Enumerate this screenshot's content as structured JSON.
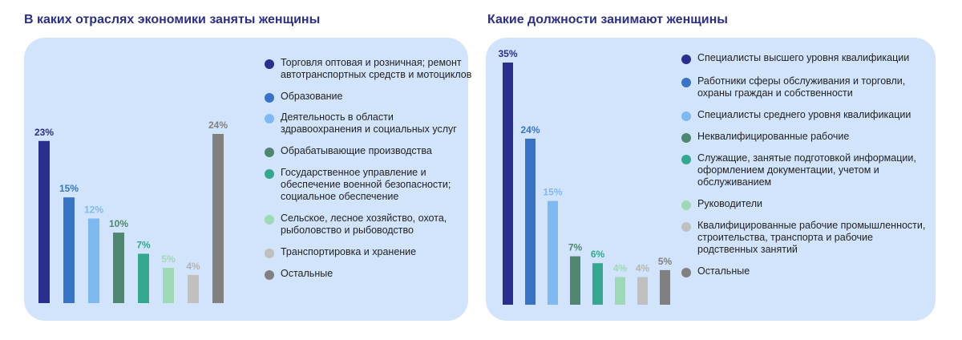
{
  "chart_data": [
    {
      "type": "bar",
      "title": "В каких отраслях экономики заняты женщины",
      "categories": [
        "Торговля оптовая и розничная; ремонт автотранспортных средств и мотоциклов",
        "Образование",
        "Деятельность в области здравоохранения и социальных услуг",
        "Обрабатывающие производства",
        "Государственное управление и обеспечение военной безопасности; социальное обеспечение",
        "Сельское, лесное хозяйство, охота, рыболовство и рыбоводство",
        "Транспортировка и хранение",
        "Остальные"
      ],
      "values": [
        23,
        15,
        12,
        10,
        7,
        5,
        4,
        24
      ],
      "value_labels": [
        "23%",
        "15%",
        "12%",
        "10%",
        "7%",
        "5%",
        "4%",
        "24%"
      ],
      "colors": [
        "#2b2e8c",
        "#3874c5",
        "#7eb9f2",
        "#4f8670",
        "#33a88f",
        "#9ed9b6",
        "#c0c0c0",
        "#808080"
      ],
      "label_colors": [
        "#2b2e8c",
        "#3874c5",
        "#7eb9f2",
        "#4f8670",
        "#33a88f",
        "#9ed9b6",
        "#b4b4b4",
        "#808080"
      ],
      "legend_placement": "right",
      "ylim": [
        0,
        24
      ]
    },
    {
      "type": "bar",
      "title": "Какие должности занимают женщины",
      "categories": [
        "Специалисты высшего уровня квалификации",
        "Работники сферы обслуживания и торговли, охраны граждан и собственности",
        "Специалисты среднего уровня квалификации",
        "Неквалифицированные рабочие",
        "Служащие, занятые подготовкой информации, оформлением документации, учетом и обслуживанием",
        "Руководители",
        "Квалифицированные рабочие промышленности, строительства, транспорта и рабочие родственных занятий",
        "Остальные"
      ],
      "values": [
        35,
        24,
        15,
        7,
        6,
        4,
        4,
        5
      ],
      "value_labels": [
        "35%",
        "24%",
        "15%",
        "7%",
        "6%",
        "4%",
        "4%",
        "5%"
      ],
      "colors": [
        "#2b2e8c",
        "#3874c5",
        "#7eb9f2",
        "#4f8670",
        "#33a88f",
        "#9ed9b6",
        "#c0c0c0",
        "#808080"
      ],
      "label_colors": [
        "#2b2e8c",
        "#3874c5",
        "#7eb9f2",
        "#4f8670",
        "#33a88f",
        "#9ed9b6",
        "#b4b4b4",
        "#808080"
      ],
      "legend_placement": "right",
      "ylim": [
        0,
        35
      ]
    }
  ]
}
